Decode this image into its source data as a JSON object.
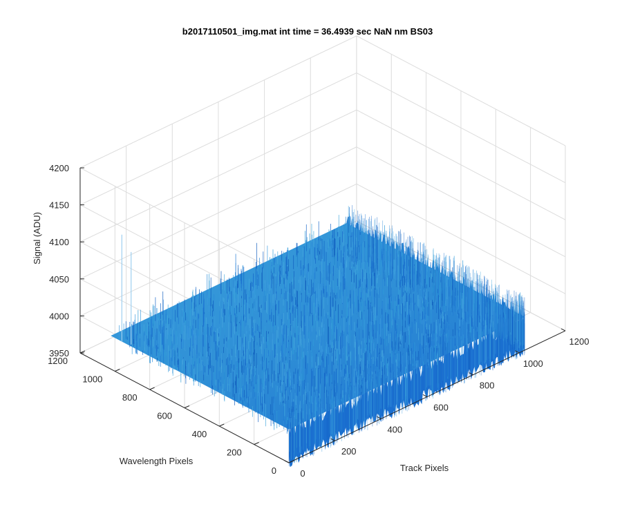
{
  "chart_data": {
    "type": "surface",
    "title": "b2017110501_img.mat int time = 36.4939 sec  NaN nm BS03",
    "xlabel": "Track Pixels",
    "ylabel": "Wavelength Pixels",
    "zlabel": "Signal (ADU)",
    "xlim": [
      0,
      1200
    ],
    "ylim": [
      0,
      1200
    ],
    "zlim": [
      3950,
      4200
    ],
    "x_ticks": [
      "0",
      "200",
      "400",
      "600",
      "800",
      "1000",
      "1200"
    ],
    "y_ticks": [
      "0",
      "200",
      "400",
      "600",
      "800",
      "1000",
      "1200"
    ],
    "z_ticks": [
      "3950",
      "4000",
      "4050",
      "4100",
      "4150",
      "4200"
    ],
    "surface": {
      "x_extent": [
        0,
        1024
      ],
      "y_extent": [
        0,
        1024
      ],
      "mean_signal": 3985,
      "noise_band": [
        3965,
        4030
      ]
    },
    "spikes": [
      {
        "x": 30,
        "y": 1000,
        "z": 4130
      },
      {
        "x": 40,
        "y": 960,
        "z": 4110
      }
    ],
    "grid": true,
    "colors": {
      "surface_dark": "#1a6fd0",
      "surface_light": "#3aa0dc",
      "grid": "#dcdcdc",
      "axis": "#262626"
    }
  }
}
